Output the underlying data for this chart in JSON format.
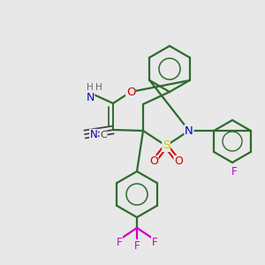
{
  "bg_color": "#e8e8e8",
  "bond_color": "#2d6b2d",
  "atom_colors": {
    "N": "#0000cc",
    "O": "#cc0000",
    "S": "#cccc00",
    "F": "#cc00cc",
    "H": "#666666",
    "C": "#444444"
  },
  "figsize": [
    3.0,
    3.0
  ],
  "dpi": 100
}
